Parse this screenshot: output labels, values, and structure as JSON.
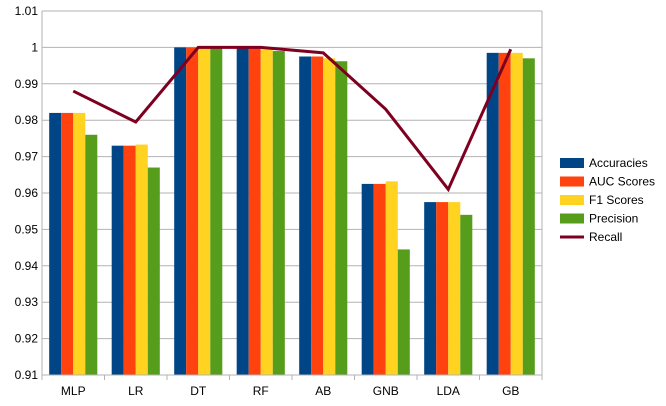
{
  "chart_data": {
    "type": "bar",
    "categories": [
      "MLP",
      "LR",
      "DT",
      "RF",
      "AB",
      "GNB",
      "LDA",
      "GB"
    ],
    "series": [
      {
        "name": "Accuracies",
        "type": "bar",
        "color": "#004586",
        "values": [
          0.982,
          0.973,
          1.0,
          1.0,
          0.9975,
          0.9625,
          0.9575,
          0.9985
        ]
      },
      {
        "name": "AUC Scores",
        "type": "bar",
        "color": "#ff420e",
        "values": [
          0.982,
          0.973,
          1.0,
          1.0,
          0.9975,
          0.9625,
          0.9575,
          0.9985
        ]
      },
      {
        "name": "F1 Scores",
        "type": "bar",
        "color": "#ffd320",
        "values": [
          0.982,
          0.9733,
          1.0,
          0.9995,
          0.997,
          0.9632,
          0.9575,
          0.9985
        ]
      },
      {
        "name": "Precision",
        "type": "bar",
        "color": "#579d1c",
        "values": [
          0.976,
          0.967,
          1.0,
          0.999,
          0.9962,
          0.9445,
          0.954,
          0.997
        ]
      },
      {
        "name": "Recall",
        "type": "line",
        "color": "#7e0021",
        "values": [
          0.988,
          0.9795,
          1.0,
          1.0,
          0.9985,
          0.983,
          0.961,
          0.9995
        ]
      }
    ],
    "yticks": [
      "0.91",
      "0.92",
      "0.93",
      "0.94",
      "0.95",
      "0.96",
      "0.97",
      "0.98",
      "0.99",
      "1",
      "1.01"
    ],
    "ylim": [
      0.91,
      1.01
    ],
    "grid": true,
    "legend_position": "right",
    "title": "",
    "xlabel": "",
    "ylabel": ""
  }
}
